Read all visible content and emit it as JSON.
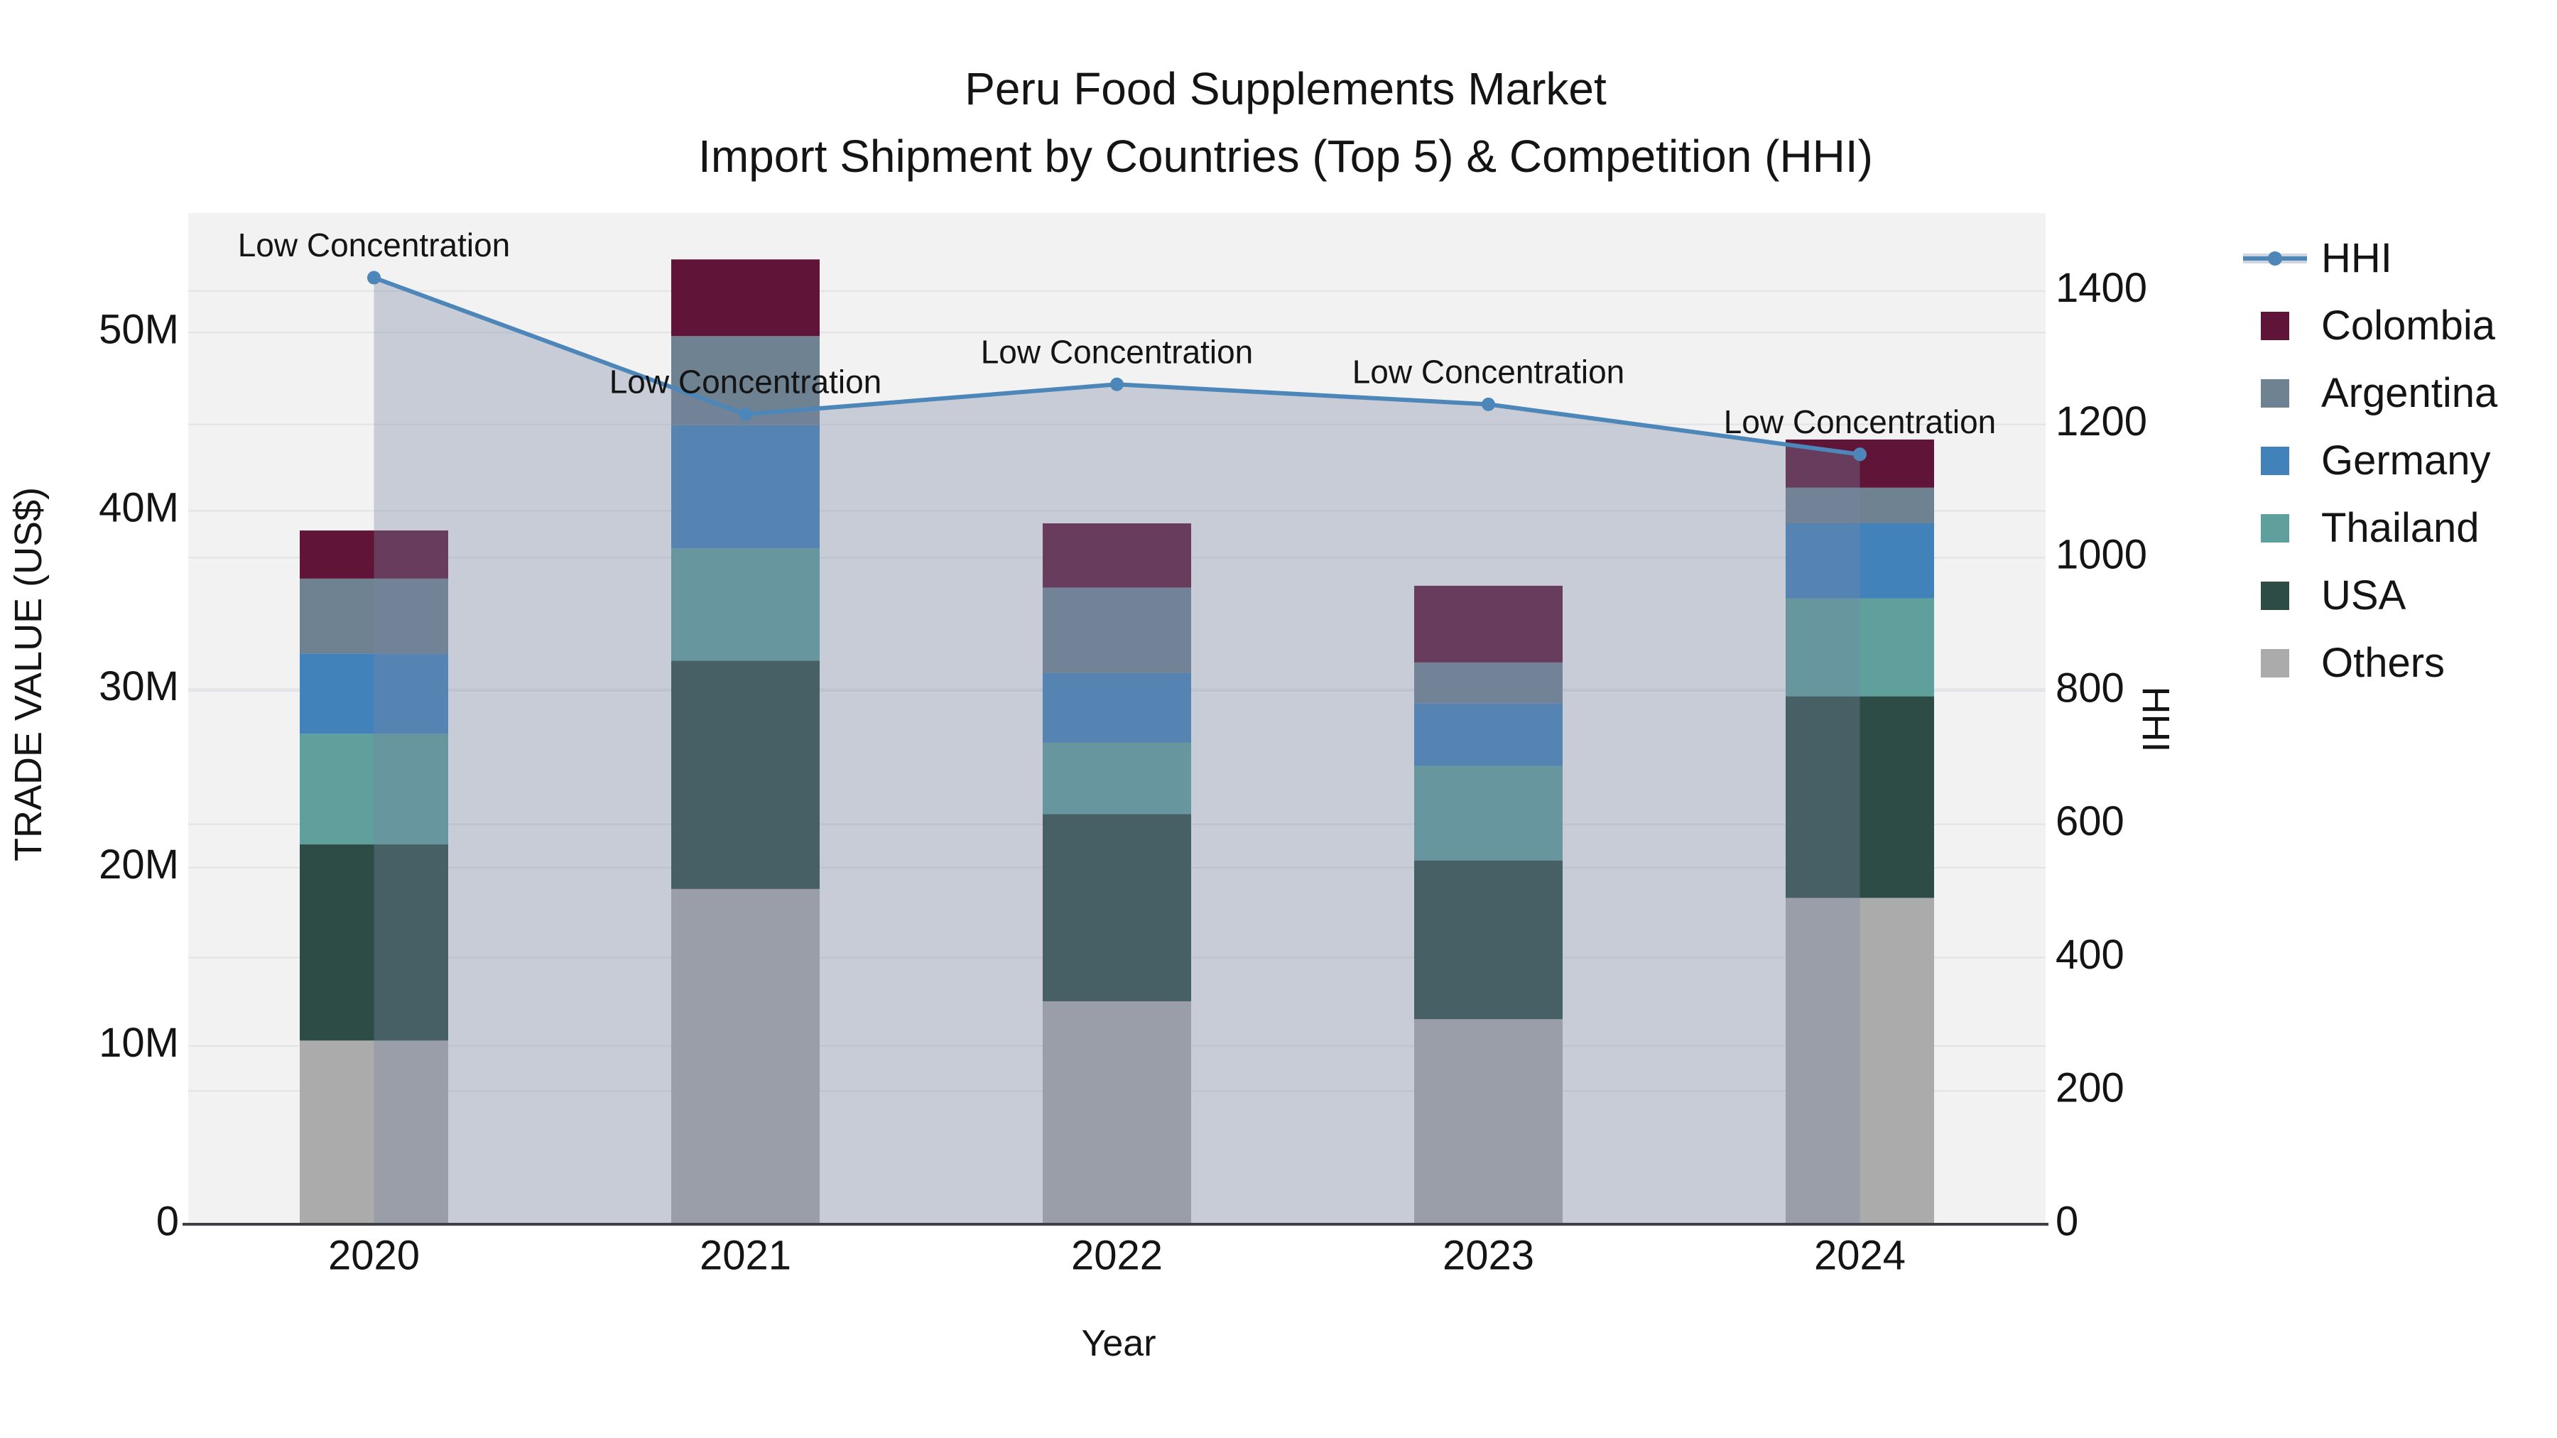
{
  "title": {
    "line1": "Peru Food Supplements Market",
    "line2": "Import Shipment by Countries (Top 5) & Competition (HHI)"
  },
  "axes": {
    "x": {
      "title": "Year",
      "tick_labels": [
        "2020",
        "2021",
        "2022",
        "2023",
        "2024"
      ]
    },
    "y_left": {
      "title": "TRADE VALUE (US$)",
      "tick_labels": [
        "0",
        "10M",
        "20M",
        "30M",
        "40M",
        "50M"
      ],
      "tick_values": [
        0,
        10,
        20,
        30,
        40,
        50
      ]
    },
    "y_right": {
      "title": "HHI",
      "tick_labels": [
        "0",
        "200",
        "400",
        "600",
        "800",
        "1000",
        "1200",
        "1400"
      ],
      "tick_values": [
        0,
        200,
        400,
        600,
        800,
        1000,
        1200,
        1400
      ]
    }
  },
  "legend": {
    "items": [
      {
        "label": "HHI",
        "marker": "line-dot",
        "color": "#4d86b8"
      },
      {
        "label": "Colombia",
        "marker": "square",
        "color": "#601538"
      },
      {
        "label": "Argentina",
        "marker": "square",
        "color": "#6f8291"
      },
      {
        "label": "Germany",
        "marker": "square",
        "color": "#4282bb"
      },
      {
        "label": "Thailand",
        "marker": "square",
        "color": "#5f9f9c"
      },
      {
        "label": "USA",
        "marker": "square",
        "color": "#2c4c45"
      },
      {
        "label": "Others",
        "marker": "square",
        "color": "#ababab"
      }
    ]
  },
  "annotations": [
    "Low Concentration",
    "Low Concentration",
    "Low Concentration",
    "Low Concentration",
    "Low Concentration"
  ],
  "chart_data": {
    "type": "combo: stacked bar (left axis) + line with area fill (right axis)",
    "title": "Peru Food Supplements Market — Import Shipment by Countries (Top 5) & Competition (HHI)",
    "xlabel": "Year",
    "ylabel_left": "TRADE VALUE (US$)",
    "ylabel_right": "HHI",
    "categories": [
      "2020",
      "2021",
      "2022",
      "2023",
      "2024"
    ],
    "bar_unit": "million US$",
    "series": [
      {
        "name": "Colombia",
        "color": "#601538",
        "values": [
          2.7,
          4.3,
          3.6,
          4.3,
          2.7
        ]
      },
      {
        "name": "Argentina",
        "color": "#6f8291",
        "values": [
          4.2,
          5.0,
          4.8,
          2.3,
          2.0
        ]
      },
      {
        "name": "Germany",
        "color": "#4282bb",
        "values": [
          4.5,
          6.9,
          3.9,
          3.5,
          4.2
        ]
      },
      {
        "name": "Thailand",
        "color": "#5f9f9c",
        "values": [
          6.2,
          6.3,
          4.0,
          5.3,
          5.5
        ]
      },
      {
        "name": "USA",
        "color": "#2c4c45",
        "values": [
          11.0,
          12.8,
          10.5,
          8.9,
          11.3
        ]
      },
      {
        "name": "Others",
        "color": "#ababab",
        "values": [
          10.3,
          18.8,
          12.5,
          11.5,
          18.3
        ]
      }
    ],
    "stack_totals": [
      38.9,
      54.1,
      39.3,
      35.8,
      44.0
    ],
    "stack_order_bottom_to_top": [
      "Others",
      "USA",
      "Thailand",
      "Germany",
      "Argentina",
      "Colombia"
    ],
    "line_series": {
      "name": "HHI",
      "axis": "right",
      "color": "#4d86b8",
      "values": [
        1420,
        1215,
        1260,
        1230,
        1155
      ]
    },
    "point_annotations": [
      "Low Concentration",
      "Low Concentration",
      "Low Concentration",
      "Low Concentration",
      "Low Concentration"
    ],
    "ylim_left": [
      0,
      56.7
    ],
    "ylim_right": [
      0,
      1517
    ],
    "grid": true,
    "legend_position": "right"
  },
  "colors": {
    "page_bg": "#ffffff",
    "plot_bg": "#f2f2f2",
    "grid": "#e2e2e6",
    "axis_line": "#3f3f46",
    "area_fill": "rgba(119,134,164,0.35)",
    "line": "#4d86b8",
    "text": "#141414"
  }
}
